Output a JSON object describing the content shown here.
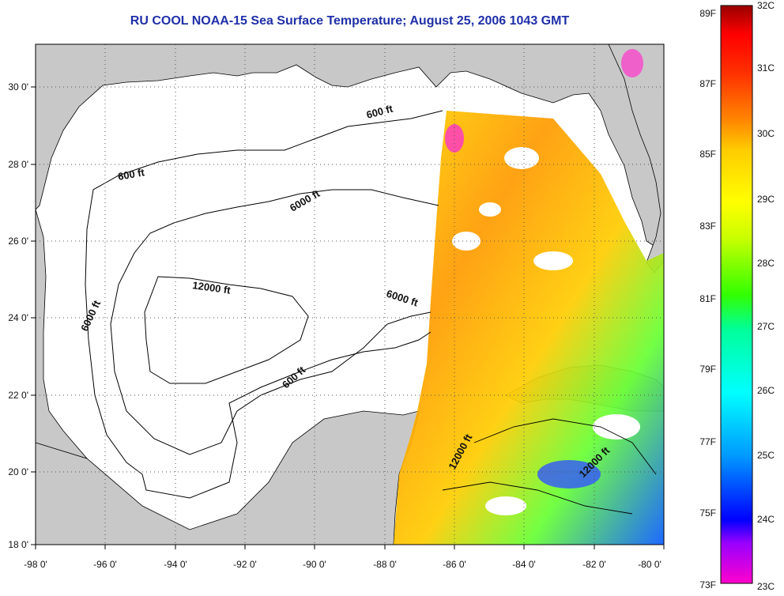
{
  "title": "RU COOL  NOAA-15  Sea Surface Temperature;  August 25, 2006 1043 GMT",
  "map": {
    "lon_range": [
      -98,
      -80
    ],
    "lat_range": [
      18,
      31
    ],
    "lon_ticks": [
      "-98 0'",
      "-96 0'",
      "-94 0'",
      "-92 0'",
      "-90 0'",
      "-88 0'",
      "-86 0'",
      "-84 0'",
      "-82 0'",
      "-80 0'"
    ],
    "lat_ticks": [
      "18 0'",
      "20 0'",
      "22 0'",
      "24 0'",
      "26 0'",
      "28 0'",
      "30 0'"
    ],
    "grid": true,
    "grid_style": "dotted",
    "land_color": "#c8c8c8",
    "water_color": "#ffffff",
    "contour_labels": [
      "600 ft",
      "600 ft",
      "600 ft",
      "6000 ft",
      "6000 ft",
      "6000 ft",
      "12000 ft",
      "12000 ft",
      "12000 ft"
    ]
  },
  "colorbar": {
    "fahrenheit_labels": [
      "89F",
      "87F",
      "85F",
      "83F",
      "81F",
      "79F",
      "77F",
      "75F",
      "73F"
    ],
    "celsius_labels": [
      "32C",
      "31C",
      "30C",
      "29C",
      "28C",
      "27C",
      "26C",
      "25C",
      "24C",
      "23C"
    ],
    "range_c": [
      23,
      32
    ],
    "colors": [
      "#ff00cc",
      "#9900ff",
      "#0000ff",
      "#0099ff",
      "#00ffff",
      "#00ff99",
      "#33ff00",
      "#ccff00",
      "#ffff00",
      "#ffcc00",
      "#ff8800",
      "#ff3300",
      "#ff0000",
      "#990000"
    ]
  }
}
